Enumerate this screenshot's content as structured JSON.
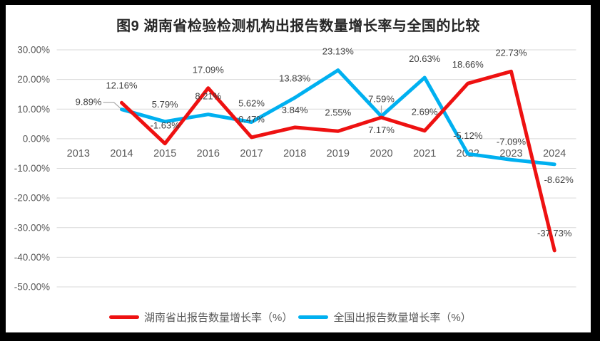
{
  "chart_data": {
    "type": "line",
    "title": "图9 湖南省检验检测机构出报告数量增长率与全国的比较",
    "categories": [
      "2013",
      "2014",
      "2015",
      "2016",
      "2017",
      "2018",
      "2019",
      "2020",
      "2021",
      "2022",
      "2023",
      "2024"
    ],
    "series": [
      {
        "name": "湖南省出报告数量增长率（%）",
        "color": "#ee1111",
        "values": [
          null,
          12.16,
          -1.63,
          17.09,
          0.47,
          3.84,
          2.55,
          7.17,
          2.69,
          18.66,
          22.73,
          -37.73
        ],
        "point_labels": [
          null,
          "12.16%",
          "-1.63%",
          "17.09%",
          "0.47%",
          "3.84%",
          "2.55%",
          "7.17%",
          "2.69%",
          "18.66%",
          "22.73%",
          "-37.73%"
        ]
      },
      {
        "name": "全国出报告数量增长率（%）",
        "color": "#00b0f0",
        "values": [
          null,
          9.89,
          5.79,
          8.21,
          5.62,
          13.83,
          23.13,
          7.59,
          20.63,
          -5.12,
          -7.09,
          -8.62
        ],
        "point_labels": [
          null,
          "9.89%",
          "5.79%",
          "8.21%",
          "5.62%",
          "13.83%",
          "23.13%",
          "7.59%",
          "20.63%",
          "-5.12%",
          "-7.09%",
          "-8.62%"
        ]
      }
    ],
    "ylim": [
      -50,
      30
    ],
    "y_tick_step": 10,
    "y_tick_labels": [
      "30.00%",
      "20.00%",
      "10.00%",
      "0.00%",
      "-10.00%",
      "-20.00%",
      "-30.00%",
      "-40.00%",
      "-50.00%"
    ],
    "grid": true,
    "legend_position": "bottom",
    "label_offsets": [
      [
        null,
        [
          0,
          -20
        ],
        [
          0,
          -21
        ],
        [
          0,
          -21
        ],
        [
          0,
          -21
        ],
        [
          0,
          -20
        ],
        [
          0,
          -22
        ],
        [
          0,
          22
        ],
        [
          0,
          -22
        ],
        [
          0,
          -22
        ],
        [
          0,
          -22
        ],
        [
          0,
          -20
        ]
      ],
      [
        null,
        [
          -28,
          -6,
          "end"
        ],
        [
          0,
          -20
        ],
        [
          0,
          -21
        ],
        [
          0,
          -22
        ],
        [
          0,
          -23
        ],
        [
          0,
          -22
        ],
        [
          0,
          -20
        ],
        [
          0,
          -22
        ],
        [
          0,
          -21
        ],
        [
          0,
          -21
        ],
        [
          6,
          26
        ]
      ]
    ],
    "leader_lines": [
      {
        "series": 1,
        "category_index": 1,
        "shape": "elbow"
      },
      {
        "series": 1,
        "category_index": 7,
        "shape": "vertical"
      }
    ]
  },
  "colors": {
    "frame_bg": "#000000",
    "canvas_bg": "#ffffff",
    "grid": "#d9d9d9",
    "axis_text": "#595959",
    "data_label_text": "#404040",
    "title_text": "#262626",
    "leader": "#a6a6a6"
  }
}
